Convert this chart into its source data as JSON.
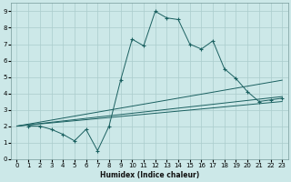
{
  "xlabel": "Humidex (Indice chaleur)",
  "bg_color": "#cce8e8",
  "grid_color": "#aacccc",
  "line_color": "#1a6060",
  "xlim": [
    -0.5,
    23.5
  ],
  "ylim": [
    0,
    9.5
  ],
  "xticks": [
    0,
    1,
    2,
    3,
    4,
    5,
    6,
    7,
    8,
    9,
    10,
    11,
    12,
    13,
    14,
    15,
    16,
    17,
    18,
    19,
    20,
    21,
    22,
    23
  ],
  "yticks": [
    0,
    1,
    2,
    3,
    4,
    5,
    6,
    7,
    8,
    9
  ],
  "series1_x": [
    1,
    2,
    3,
    4,
    5,
    6,
    7,
    8,
    9,
    10,
    11,
    12,
    13,
    14,
    15,
    16,
    17,
    18,
    19,
    20,
    21,
    22,
    23
  ],
  "series1_y": [
    2.0,
    2.0,
    1.8,
    1.5,
    1.1,
    1.8,
    0.5,
    2.0,
    4.8,
    7.3,
    6.9,
    9.0,
    8.6,
    8.5,
    7.0,
    6.7,
    7.2,
    5.5,
    4.9,
    4.1,
    3.5,
    3.6,
    3.7
  ],
  "line2_x": [
    0,
    23
  ],
  "line2_y": [
    2.0,
    4.8
  ],
  "line3_x": [
    0,
    23
  ],
  "line3_y": [
    2.0,
    3.8
  ],
  "line4_x": [
    0,
    23
  ],
  "line4_y": [
    2.0,
    3.5
  ]
}
